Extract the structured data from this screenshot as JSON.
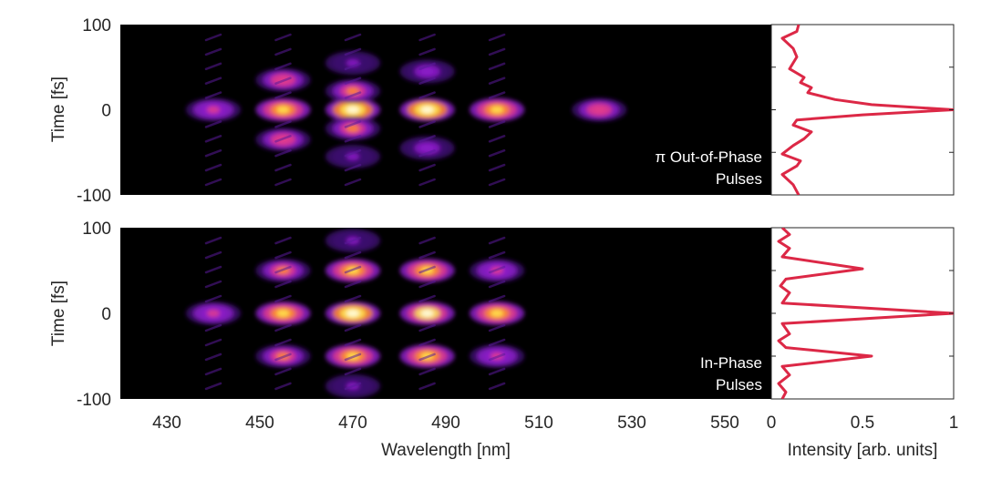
{
  "chart_data": [
    {
      "type": "heatmap",
      "panel": "top",
      "title": "",
      "xlabel": "",
      "ylabel": "Time [fs]",
      "xlim": [
        420,
        560
      ],
      "ylim": [
        -100,
        100
      ],
      "yticks": [
        "100",
        "0",
        "-100"
      ],
      "yticks_values": [
        100,
        0,
        -100
      ],
      "colormap": [
        "#000000",
        "#3c0a6e",
        "#8c1cc8",
        "#e23c8c",
        "#ff8c28",
        "#ffe650",
        "#ffffe6"
      ],
      "annotation": [
        "π Out-of-Phase",
        "Pulses"
      ],
      "blobs": [
        {
          "x": 440,
          "y": 0,
          "intensity": 0.45
        },
        {
          "x": 455,
          "y": 0,
          "intensity": 0.8
        },
        {
          "x": 470,
          "y": 0,
          "intensity": 1.0
        },
        {
          "x": 486,
          "y": 0,
          "intensity": 1.0
        },
        {
          "x": 501,
          "y": 0,
          "intensity": 0.75
        },
        {
          "x": 523,
          "y": 0,
          "intensity": 0.5
        },
        {
          "x": 455,
          "y": 35,
          "intensity": 0.55
        },
        {
          "x": 470,
          "y": 22,
          "intensity": 0.65
        },
        {
          "x": 455,
          "y": -35,
          "intensity": 0.55
        },
        {
          "x": 470,
          "y": -22,
          "intensity": 0.65
        },
        {
          "x": 470,
          "y": 55,
          "intensity": 0.25
        },
        {
          "x": 470,
          "y": -55,
          "intensity": 0.25
        },
        {
          "x": 486,
          "y": 45,
          "intensity": 0.3
        },
        {
          "x": 486,
          "y": -45,
          "intensity": 0.3
        }
      ]
    },
    {
      "type": "line",
      "panel": "top-right",
      "xlabel": "",
      "xlim": [
        0,
        1
      ],
      "ylim": [
        -100,
        100
      ],
      "color": "#dc2846",
      "x": [
        0.15,
        0.14,
        0.06,
        0.12,
        0.14,
        0.1,
        0.18,
        0.16,
        0.22,
        0.2,
        0.35,
        0.55,
        1.0,
        0.5,
        0.14,
        0.12,
        0.22,
        0.18,
        0.12,
        0.06,
        0.16,
        0.14,
        0.06,
        0.12,
        0.15
      ],
      "y": [
        100,
        92,
        84,
        72,
        62,
        48,
        38,
        32,
        26,
        20,
        12,
        6,
        0,
        -6,
        -12,
        -18,
        -26,
        -34,
        -42,
        -52,
        -60,
        -66,
        -76,
        -88,
        -100
      ]
    },
    {
      "type": "heatmap",
      "panel": "bottom",
      "title": "",
      "xlabel": "Wavelength [nm]",
      "ylabel": "Time [fs]",
      "xlim": [
        420,
        560
      ],
      "ylim": [
        -100,
        100
      ],
      "xticks": [
        "430",
        "450",
        "470",
        "490",
        "510",
        "530",
        "550"
      ],
      "xticks_values": [
        430,
        450,
        470,
        490,
        510,
        530,
        550
      ],
      "yticks": [
        "100",
        "0",
        "-100"
      ],
      "yticks_values": [
        100,
        0,
        -100
      ],
      "annotation": [
        "In-Phase",
        "Pulses"
      ],
      "blobs": [
        {
          "x": 440,
          "y": 0,
          "intensity": 0.45
        },
        {
          "x": 455,
          "y": 0,
          "intensity": 0.8
        },
        {
          "x": 470,
          "y": 0,
          "intensity": 1.0
        },
        {
          "x": 486,
          "y": 0,
          "intensity": 0.95
        },
        {
          "x": 501,
          "y": 0,
          "intensity": 0.8
        },
        {
          "x": 455,
          "y": 50,
          "intensity": 0.6
        },
        {
          "x": 470,
          "y": 50,
          "intensity": 0.75
        },
        {
          "x": 486,
          "y": 50,
          "intensity": 0.75
        },
        {
          "x": 501,
          "y": 50,
          "intensity": 0.45
        },
        {
          "x": 455,
          "y": -50,
          "intensity": 0.6
        },
        {
          "x": 470,
          "y": -50,
          "intensity": 0.75
        },
        {
          "x": 486,
          "y": -50,
          "intensity": 0.75
        },
        {
          "x": 501,
          "y": -50,
          "intensity": 0.45
        },
        {
          "x": 470,
          "y": 85,
          "intensity": 0.25
        },
        {
          "x": 470,
          "y": -85,
          "intensity": 0.25
        }
      ]
    },
    {
      "type": "line",
      "panel": "bottom-right",
      "xlabel": "Intensity [arb. units]",
      "xlim": [
        0,
        1
      ],
      "ylim": [
        -100,
        100
      ],
      "xticks": [
        "0",
        "0.5",
        "1"
      ],
      "xticks_values": [
        0,
        0.5,
        1
      ],
      "color": "#dc2846",
      "x": [
        0.06,
        0.1,
        0.04,
        0.1,
        0.06,
        0.5,
        0.08,
        0.05,
        0.1,
        0.06,
        1.0,
        0.06,
        0.1,
        0.04,
        0.08,
        0.55,
        0.06,
        0.1,
        0.04,
        0.08,
        0.06
      ],
      "y": [
        100,
        92,
        84,
        76,
        66,
        52,
        40,
        32,
        24,
        12,
        0,
        -12,
        -24,
        -32,
        -40,
        -50,
        -62,
        -72,
        -82,
        -92,
        -100
      ]
    }
  ]
}
